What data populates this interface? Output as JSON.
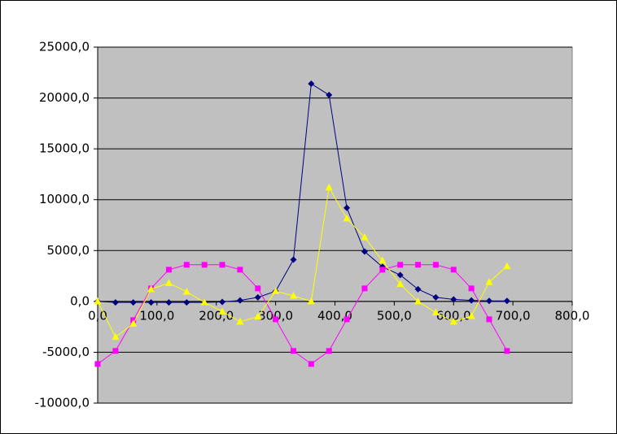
{
  "chart_data": {
    "type": "scatter-line",
    "x": [
      0,
      30,
      60,
      90,
      120,
      150,
      180,
      210,
      240,
      270,
      300,
      330,
      360,
      390,
      420,
      450,
      480,
      510,
      540,
      570,
      600,
      630,
      660,
      690
    ],
    "series": [
      {
        "color": "#000080",
        "marker": "diamond",
        "values": [
          0,
          -100,
          -100,
          -100,
          -100,
          -100,
          -100,
          -50,
          100,
          400,
          1000,
          4100,
          21400,
          20300,
          9200,
          4900,
          3400,
          2600,
          1200,
          400,
          200,
          100,
          50,
          50
        ]
      },
      {
        "color": "#ff00ff",
        "marker": "square",
        "values": [
          -6150,
          -4870,
          -1840,
          1280,
          3120,
          3600,
          3600,
          3600,
          3120,
          1280,
          -1760,
          -4870,
          -6150,
          -4870,
          -1760,
          1280,
          3120,
          3600,
          3600,
          3600,
          3120,
          1280,
          -1760,
          -4870
        ]
      },
      {
        "color": "#ffff00",
        "marker": "triangle",
        "values": [
          0,
          -3500,
          -2200,
          1200,
          1800,
          950,
          -100,
          -1000,
          -2000,
          -1500,
          1000,
          550,
          0,
          11200,
          8150,
          6300,
          4000,
          1700,
          0,
          -1100,
          -2000,
          -1450,
          1900,
          3450
        ]
      }
    ],
    "xlim": [
      0,
      800
    ],
    "xticks": [
      {
        "value": 0,
        "label": "0,0"
      },
      {
        "value": 100,
        "label": "100,0"
      },
      {
        "value": 200,
        "label": "200,0"
      },
      {
        "value": 300,
        "label": "300,0"
      },
      {
        "value": 400,
        "label": "400,0"
      },
      {
        "value": 500,
        "label": "500,0"
      },
      {
        "value": 600,
        "label": "600,0"
      },
      {
        "value": 700,
        "label": "700,0"
      },
      {
        "value": 800,
        "label": "800,0"
      }
    ],
    "ylim": [
      -10000,
      25000
    ],
    "yticks": [
      {
        "value": -10000,
        "label": "-10000,0"
      },
      {
        "value": -5000,
        "label": "-5000,0"
      },
      {
        "value": 0,
        "label": "0,0"
      },
      {
        "value": 5000,
        "label": "5000,0"
      },
      {
        "value": 10000,
        "label": "10000,0"
      },
      {
        "value": 15000,
        "label": "15000,0"
      },
      {
        "value": 20000,
        "label": "20000,0"
      },
      {
        "value": 25000,
        "label": "25000,0"
      }
    ],
    "grid": true,
    "plot_background": "#c0c0c0"
  }
}
